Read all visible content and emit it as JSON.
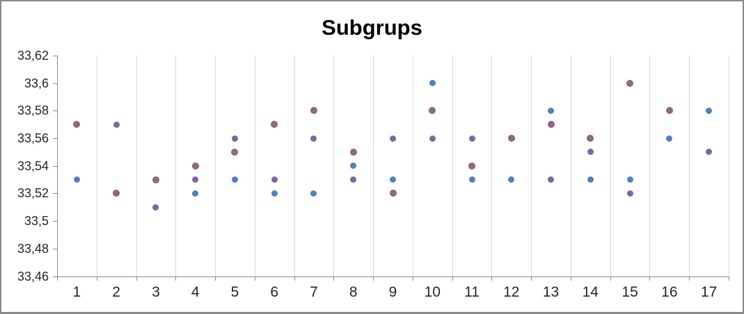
{
  "window": {
    "background": "#ffffff",
    "border_color": "#8a8a8a"
  },
  "chart_data": {
    "type": "scatter",
    "title": "Subgrups",
    "xlabel": "",
    "ylabel": "",
    "legend": "none",
    "grid": "vertical-between-categories-only",
    "decimal_separator": ",",
    "x_categories": [
      1,
      2,
      3,
      4,
      5,
      6,
      7,
      8,
      9,
      10,
      11,
      12,
      13,
      14,
      15,
      16,
      17
    ],
    "y_axis": {
      "min": 33.46,
      "max": 33.62,
      "step": 0.02,
      "tick_labels": [
        "33,62",
        "33,6",
        "33,58",
        "33,56",
        "33,54",
        "33,52",
        "33,5",
        "33,48",
        "33,46"
      ]
    },
    "colors": {
      "blue_fill": "#4f81bd",
      "red_ring_border": "#c0504d",
      "red_ring_fill": "#4f81bd",
      "purple_fill": "#8064a2",
      "gridline": "#d9d9d9",
      "axis_line": "#8c8c8c",
      "label_text": "#262626",
      "title_text": "#000000"
    },
    "series": [
      {
        "name": "blue",
        "marker": "solid-blue-circle",
        "points": [
          {
            "x": 1,
            "y": 33.53
          },
          {
            "x": 4,
            "y": 33.52
          },
          {
            "x": 5,
            "y": 33.53
          },
          {
            "x": 6,
            "y": 33.52
          },
          {
            "x": 7,
            "y": 33.52
          },
          {
            "x": 8,
            "y": 33.54
          },
          {
            "x": 9,
            "y": 33.53
          },
          {
            "x": 10,
            "y": 33.6
          },
          {
            "x": 11,
            "y": 33.53
          },
          {
            "x": 12,
            "y": 33.53
          },
          {
            "x": 13,
            "y": 33.58
          },
          {
            "x": 14,
            "y": 33.53
          },
          {
            "x": 15,
            "y": 33.53
          },
          {
            "x": 16,
            "y": 33.56
          },
          {
            "x": 17,
            "y": 33.58
          }
        ]
      },
      {
        "name": "purple",
        "marker": "solid-purple-circle",
        "points": [
          {
            "x": 2,
            "y": 33.57
          },
          {
            "x": 3,
            "y": 33.51
          },
          {
            "x": 4,
            "y": 33.53
          },
          {
            "x": 5,
            "y": 33.56
          },
          {
            "x": 6,
            "y": 33.53
          },
          {
            "x": 7,
            "y": 33.56
          },
          {
            "x": 8,
            "y": 33.53
          },
          {
            "x": 9,
            "y": 33.56
          },
          {
            "x": 10,
            "y": 33.56
          },
          {
            "x": 11,
            "y": 33.56
          },
          {
            "x": 13,
            "y": 33.53
          },
          {
            "x": 14,
            "y": 33.55
          },
          {
            "x": 15,
            "y": 33.52
          },
          {
            "x": 17,
            "y": 33.55
          }
        ]
      },
      {
        "name": "red-ring",
        "marker": "red-ring-blue-center-circle",
        "points": [
          {
            "x": 1,
            "y": 33.57
          },
          {
            "x": 2,
            "y": 33.52
          },
          {
            "x": 3,
            "y": 33.53
          },
          {
            "x": 4,
            "y": 33.54
          },
          {
            "x": 5,
            "y": 33.55
          },
          {
            "x": 6,
            "y": 33.57
          },
          {
            "x": 7,
            "y": 33.58
          },
          {
            "x": 8,
            "y": 33.55
          },
          {
            "x": 9,
            "y": 33.52
          },
          {
            "x": 10,
            "y": 33.58
          },
          {
            "x": 11,
            "y": 33.54
          },
          {
            "x": 12,
            "y": 33.56
          },
          {
            "x": 13,
            "y": 33.57
          },
          {
            "x": 14,
            "y": 33.56
          },
          {
            "x": 15,
            "y": 33.6
          },
          {
            "x": 16,
            "y": 33.58
          }
        ]
      }
    ]
  }
}
